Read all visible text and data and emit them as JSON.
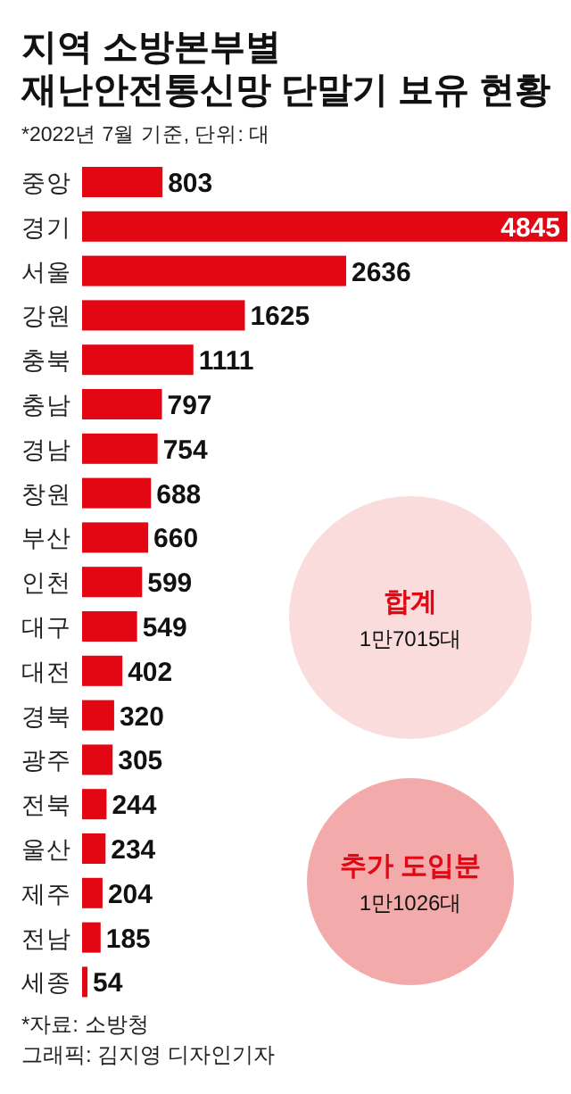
{
  "chart_data": {
    "type": "bar",
    "orientation": "horizontal",
    "title": "지역 소방본부별\n재난안전통신망 단말기 보유 현황",
    "subtitle": "*2022년 7월 기준, 단위: 대",
    "categories": [
      "중앙",
      "경기",
      "서울",
      "강원",
      "충북",
      "충남",
      "경남",
      "창원",
      "부산",
      "인천",
      "대구",
      "대전",
      "경북",
      "광주",
      "전북",
      "울산",
      "제주",
      "전남",
      "세종"
    ],
    "values": [
      803,
      4845,
      2636,
      1625,
      1111,
      797,
      754,
      688,
      660,
      599,
      549,
      402,
      320,
      305,
      244,
      234,
      204,
      185,
      54
    ],
    "color": "#e30613",
    "data_labels": true,
    "annotations": [
      "합계",
      "1만7015대",
      "추가 도입분",
      "1만1026대",
      "*자료: 소방청",
      "그래픽: 김지영 디자인기자"
    ]
  }
}
